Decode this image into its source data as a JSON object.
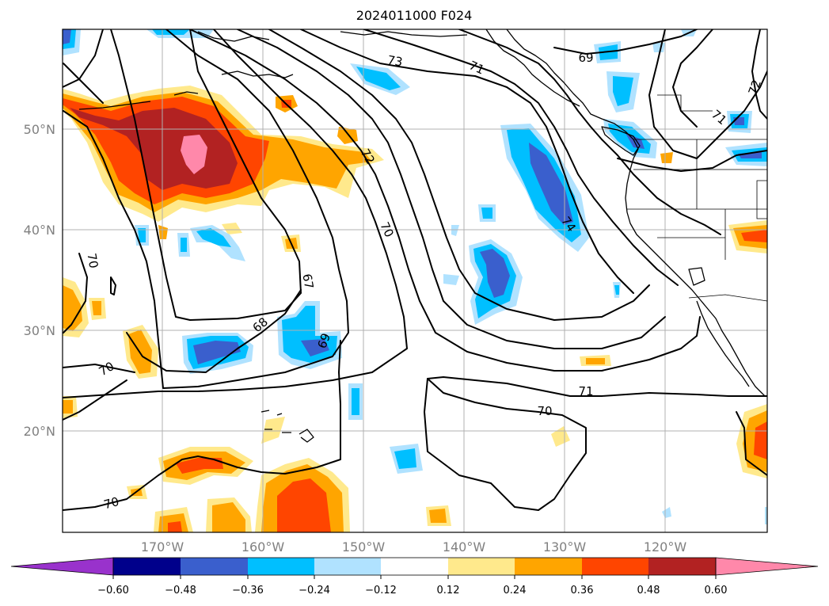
{
  "title": "2024011000 F024",
  "map": {
    "lat_labels": [
      "50°N",
      "40°N",
      "30°N",
      "20°N"
    ],
    "lon_labels": [
      "170°W",
      "160°W",
      "150°W",
      "140°W",
      "130°W",
      "120°W"
    ],
    "contour_labels": [
      "73",
      "71",
      "69",
      "72",
      "71",
      "72",
      "74",
      "70",
      "67",
      "70",
      "68",
      "69",
      "70",
      "71",
      "70",
      "70"
    ]
  },
  "colorbar": {
    "ticks": [
      "−0.60",
      "−0.48",
      "−0.36",
      "−0.24",
      "−0.12",
      "0.12",
      "0.24",
      "0.36",
      "0.48",
      "0.60"
    ],
    "colors": [
      "#9932cc",
      "#00008b",
      "#3a5fcd",
      "#00bfff",
      "#b0e2ff",
      "#ffffff",
      "#ffe98c",
      "#ffa500",
      "#ff4500",
      "#b22222",
      "#ff88aa"
    ]
  },
  "palette": {
    "pink": "#ff88aa",
    "darkred": "#b22222",
    "orangered": "#ff4500",
    "orange": "#ffa500",
    "lightyellow": "#ffe98c",
    "lightblue": "#b0e2ff",
    "skyblue": "#00bfff",
    "royalblue": "#3a5fcd",
    "navy": "#00008b",
    "purple": "#9932cc"
  }
}
